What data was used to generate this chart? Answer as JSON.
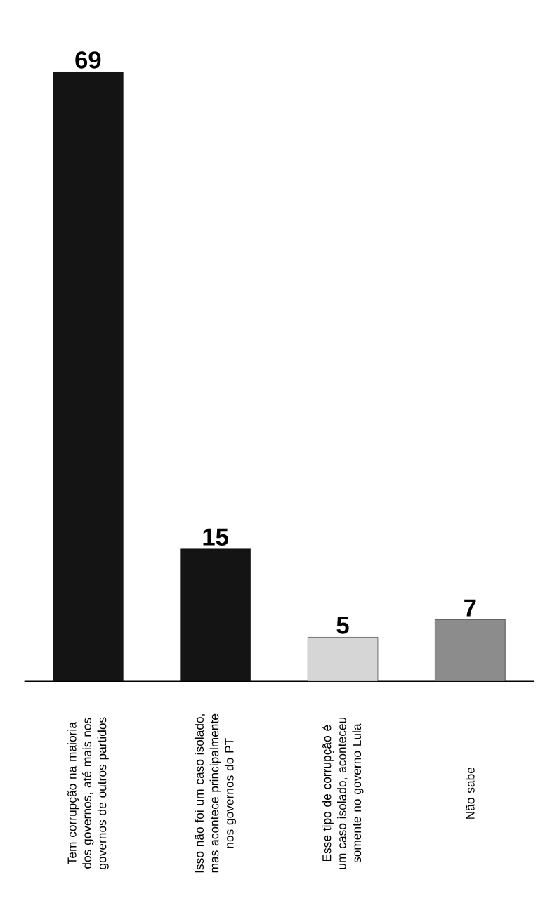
{
  "chart_data": {
    "type": "bar",
    "categories": [
      "Tem corrupção na maioria dos governos, até mais nos governos de outros partidos",
      "Isso não foi um caso isolado, mas acontece principalmente nos governos do PT",
      "Esse tipo de corrupção é um caso isolado, aconteceu somente no governo Lula",
      "Não sabe"
    ],
    "values": [
      69,
      15,
      5,
      7
    ],
    "colors": [
      "#141414",
      "#141414",
      "#d6d6d6",
      "#8c8c8c"
    ],
    "data_labels": true
  }
}
